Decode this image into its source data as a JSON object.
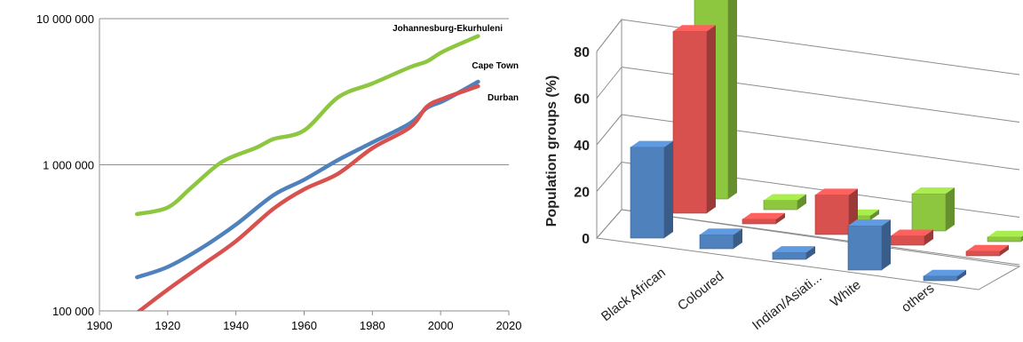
{
  "chart_data": [
    {
      "type": "line",
      "yscale": "log",
      "xlim": [
        1900,
        2020
      ],
      "ylim": [
        100000,
        10000000
      ],
      "xticks": [
        "1900",
        "1920",
        "1940",
        "1960",
        "1980",
        "2000",
        "2020"
      ],
      "yticks": [
        {
          "value": 100000,
          "label": "100 000"
        },
        {
          "value": 1000000,
          "label": "1 000 000"
        },
        {
          "value": 10000000,
          "label": "10 000 000"
        }
      ],
      "grid": "horizontal at decades",
      "series": [
        {
          "name": "Johannesburg-Ekurhuleni",
          "color": "#8dc63f",
          "points": [
            [
              1911,
              460000
            ],
            [
              1920,
              510000
            ],
            [
              1927,
              700000
            ],
            [
              1936,
              1050000
            ],
            [
              1946,
              1310000
            ],
            [
              1951,
              1500000
            ],
            [
              1960,
              1720000
            ],
            [
              1970,
              2900000
            ],
            [
              1980,
              3600000
            ],
            [
              1991,
              4650000
            ],
            [
              1996,
              5100000
            ],
            [
              2001,
              6000000
            ],
            [
              2011,
              7600000
            ]
          ]
        },
        {
          "name": "Cape Town",
          "color": "#4f81bd",
          "points": [
            [
              1911,
              170000
            ],
            [
              1920,
              200000
            ],
            [
              1930,
              270000
            ],
            [
              1940,
              390000
            ],
            [
              1951,
              620000
            ],
            [
              1960,
              790000
            ],
            [
              1970,
              1080000
            ],
            [
              1980,
              1420000
            ],
            [
              1991,
              1920000
            ],
            [
              1996,
              2450000
            ],
            [
              2001,
              2750000
            ],
            [
              2011,
              3700000
            ]
          ]
        },
        {
          "name": "Durban",
          "color": "#d9514e",
          "points": [
            [
              1911,
              97000
            ],
            [
              1920,
              140000
            ],
            [
              1930,
              205000
            ],
            [
              1940,
              300000
            ],
            [
              1951,
              500000
            ],
            [
              1960,
              680000
            ],
            [
              1970,
              870000
            ],
            [
              1980,
              1300000
            ],
            [
              1991,
              1800000
            ],
            [
              1996,
              2500000
            ],
            [
              2001,
              2850000
            ],
            [
              2011,
              3450000
            ]
          ]
        }
      ]
    },
    {
      "type": "bar",
      "style": "3d-clustered",
      "ylabel": "Population groups (%)",
      "ylim": [
        0,
        80
      ],
      "yticks": [
        "0",
        "20",
        "40",
        "60",
        "80"
      ],
      "grid": "horizontal",
      "categories": [
        "Black African",
        "Coloured",
        "Indian/Asiati...",
        "White",
        "others"
      ],
      "series": [
        {
          "color": "#4f81bd",
          "values": [
            39,
            6,
            3,
            19,
            2
          ]
        },
        {
          "color": "#d9514e",
          "values": [
            78,
            2,
            17,
            4,
            2
          ]
        },
        {
          "color": "#8dc63f",
          "values": [
            90,
            4,
            2,
            16,
            2
          ]
        }
      ]
    }
  ]
}
